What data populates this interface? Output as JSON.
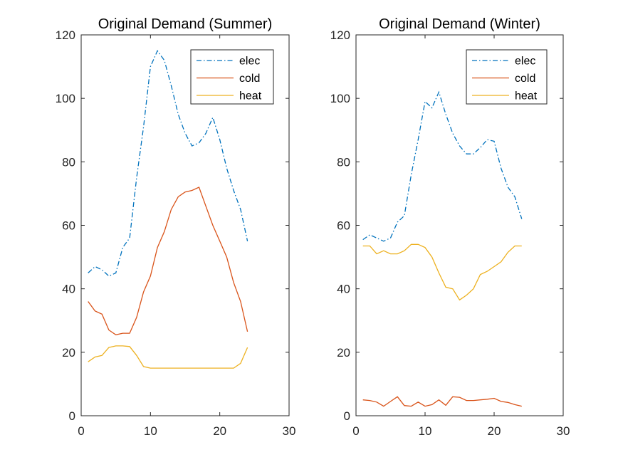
{
  "chart_data": [
    {
      "type": "line",
      "title": "Original Demand (Summer)",
      "xlabel": "",
      "ylabel": "",
      "xlim": [
        0,
        30
      ],
      "ylim": [
        0,
        120
      ],
      "xticks": [
        0,
        10,
        20,
        30
      ],
      "yticks": [
        0,
        20,
        40,
        60,
        80,
        100,
        120
      ],
      "grid": false,
      "legend_position": "top-right",
      "x": [
        1,
        2,
        3,
        4,
        5,
        6,
        7,
        8,
        9,
        10,
        11,
        12,
        13,
        14,
        15,
        16,
        17,
        18,
        19,
        20,
        21,
        22,
        23,
        24
      ],
      "series": [
        {
          "name": "elec",
          "color": "#0072BD",
          "style": "dashdot",
          "values": [
            45,
            47,
            46,
            44,
            45,
            53,
            56,
            75,
            91,
            110,
            115,
            112,
            104,
            95,
            89,
            85,
            86,
            89,
            94,
            87,
            78,
            71,
            65,
            55
          ]
        },
        {
          "name": "cold",
          "color": "#D95319",
          "style": "solid",
          "values": [
            36,
            33,
            32,
            27,
            25.5,
            26,
            26,
            31,
            39,
            44,
            53,
            58,
            65,
            69,
            70.5,
            71,
            72,
            66,
            60,
            55,
            50,
            42,
            36,
            26.5
          ]
        },
        {
          "name": "heat",
          "color": "#EDB120",
          "style": "solid",
          "values": [
            17,
            18.5,
            19,
            21.5,
            22,
            22,
            21.8,
            19,
            15.5,
            15,
            15,
            15,
            15,
            15,
            15,
            15,
            15,
            15,
            15,
            15,
            15,
            15,
            16.5,
            21.5
          ]
        }
      ]
    },
    {
      "type": "line",
      "title": "Original Demand (Winter)",
      "xlabel": "",
      "ylabel": "",
      "xlim": [
        0,
        30
      ],
      "ylim": [
        0,
        120
      ],
      "xticks": [
        0,
        10,
        20,
        30
      ],
      "yticks": [
        0,
        20,
        40,
        60,
        80,
        100,
        120
      ],
      "grid": false,
      "legend_position": "top-right",
      "x": [
        1,
        2,
        3,
        4,
        5,
        6,
        7,
        8,
        9,
        10,
        11,
        12,
        13,
        14,
        15,
        16,
        17,
        18,
        19,
        20,
        21,
        22,
        23,
        24
      ],
      "series": [
        {
          "name": "elec",
          "color": "#0072BD",
          "style": "dashdot",
          "values": [
            55.5,
            57,
            56,
            55,
            56,
            61,
            63,
            76,
            87,
            99,
            97,
            102,
            95,
            89,
            85,
            82.5,
            82.5,
            84.5,
            87,
            86.5,
            78,
            72,
            69,
            62
          ]
        },
        {
          "name": "cold",
          "color": "#D95319",
          "style": "solid",
          "values": [
            5,
            4.8,
            4.3,
            3,
            4.5,
            6,
            3.2,
            3,
            4.3,
            3,
            3.5,
            5,
            3.3,
            6,
            5.8,
            4.8,
            4.8,
            5,
            5.2,
            5.5,
            4.5,
            4.2,
            3.5,
            3
          ]
        },
        {
          "name": "heat",
          "color": "#EDB120",
          "style": "solid",
          "values": [
            53.5,
            53.5,
            51,
            52,
            51,
            51,
            52,
            54,
            54,
            53,
            50,
            45,
            40.5,
            40,
            36.5,
            38,
            40,
            44.5,
            45.5,
            47,
            48.5,
            51.5,
            53.5,
            53.5
          ]
        }
      ]
    }
  ]
}
